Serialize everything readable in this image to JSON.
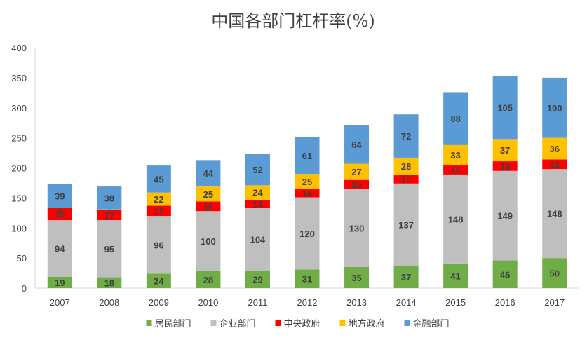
{
  "chart_data": {
    "type": "bar",
    "stacked": true,
    "title": "中国各部门杠杆率(%)",
    "xlabel": "",
    "ylabel": "",
    "ylim": [
      0,
      400
    ],
    "yticks": [
      0,
      50,
      100,
      150,
      200,
      250,
      300,
      350,
      400
    ],
    "grid": false,
    "legend_position": "bottom",
    "categories": [
      "2007",
      "2008",
      "2009",
      "2010",
      "2011",
      "2012",
      "2013",
      "2014",
      "2015",
      "2016",
      "2017"
    ],
    "series": [
      {
        "name": "居民部门",
        "color": "#70ad47",
        "values": [
          19,
          18,
          24,
          28,
          29,
          31,
          35,
          37,
          41,
          46,
          50
        ]
      },
      {
        "name": "企业部门",
        "color": "#bfbfbf",
        "values": [
          94,
          95,
          96,
          100,
          104,
          120,
          130,
          137,
          148,
          149,
          148
        ]
      },
      {
        "name": "中央政府",
        "color": "#ff0000",
        "values": [
          20,
          17,
          17,
          16,
          14,
          14,
          15,
          15,
          16,
          16,
          16
        ]
      },
      {
        "name": "地方政府",
        "color": "#ffc000",
        "values": [
          1,
          1,
          22,
          25,
          24,
          25,
          27,
          28,
          33,
          37,
          36
        ]
      },
      {
        "name": "金融部门",
        "color": "#5b9bd5",
        "values": [
          39,
          38,
          45,
          44,
          52,
          61,
          64,
          72,
          88,
          105,
          100
        ]
      }
    ]
  }
}
